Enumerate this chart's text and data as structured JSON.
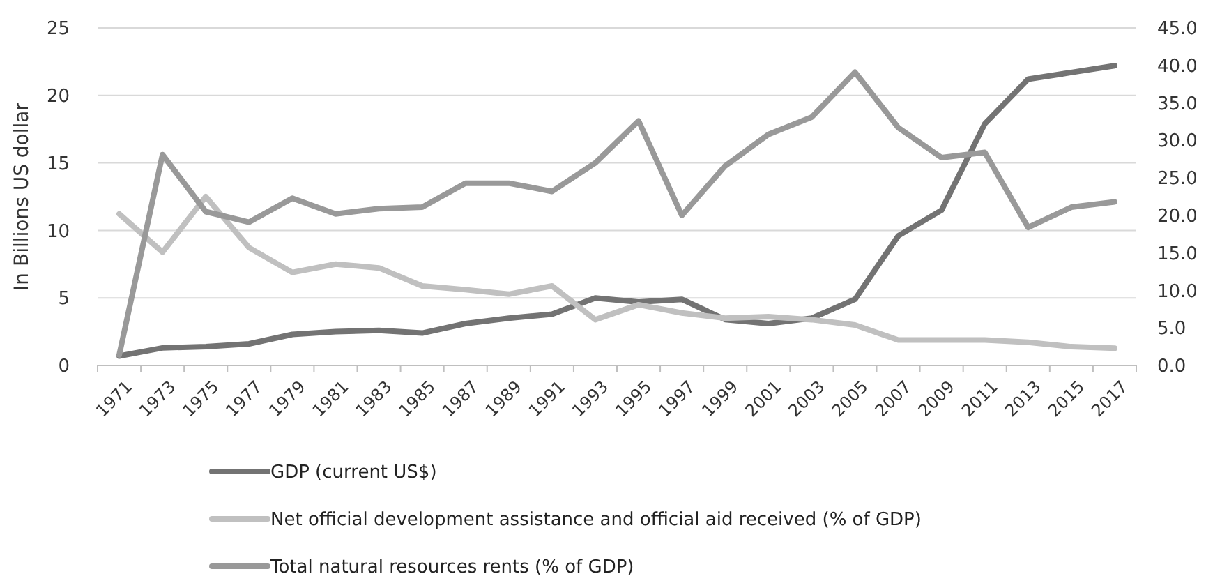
{
  "chart_data": {
    "type": "line",
    "ylabel": "In Billions  US dollar",
    "categories": [
      "1971",
      "1973",
      "1975",
      "1977",
      "1979",
      "1981",
      "1983",
      "1985",
      "1987",
      "1989",
      "1991",
      "1993",
      "1995",
      "1997",
      "1999",
      "2001",
      "2003",
      "2005",
      "2007",
      "2009",
      "2011",
      "2013",
      "2015",
      "2017"
    ],
    "series": [
      {
        "name": "GDP (current US$)",
        "color": "#737373",
        "values": [
          0.7,
          1.3,
          1.4,
          1.6,
          2.3,
          2.5,
          2.6,
          2.4,
          3.1,
          3.5,
          3.8,
          5.0,
          4.7,
          4.9,
          3.4,
          3.1,
          3.5,
          4.9,
          9.6,
          11.5,
          17.9,
          21.2,
          21.7,
          22.2
        ]
      },
      {
        "name": "Net official development assistance and official aid received (% of GDP)",
        "color": "#c0c0c0",
        "axis": "y2",
        "values": [
          20.2,
          15.1,
          22.5,
          15.7,
          12.4,
          13.5,
          13.0,
          10.6,
          10.1,
          9.5,
          10.6,
          6.1,
          8.1,
          7.0,
          6.3,
          6.5,
          6.1,
          5.4,
          3.4,
          3.4,
          3.4,
          3.1,
          2.5,
          2.3
        ]
      },
      {
        "name": "Total natural resources rents (% of GDP)",
        "color": "#999999",
        "axis": "y2",
        "values": [
          1.4,
          28.1,
          20.5,
          19.1,
          22.3,
          20.2,
          20.9,
          21.1,
          24.3,
          24.3,
          23.2,
          27.0,
          32.6,
          20.0,
          26.6,
          30.8,
          33.1,
          39.1,
          31.7,
          27.7,
          28.4,
          18.4,
          21.1,
          21.8
        ]
      }
    ],
    "ylim": [
      0,
      25
    ],
    "yticks": [
      0,
      5,
      10,
      15,
      20,
      25
    ],
    "y2lim": [
      0,
      45
    ],
    "y2ticks": [
      {
        "value": 0,
        "label": "0.0"
      },
      {
        "value": 5,
        "label": "5.0"
      },
      {
        "value": 10,
        "label": "10.0"
      },
      {
        "value": 15,
        "label": "15.0"
      },
      {
        "value": 20,
        "label": "20.0"
      },
      {
        "value": 25,
        "label": "25.0"
      },
      {
        "value": 30,
        "label": "30.0"
      },
      {
        "value": 35,
        "label": "35.0"
      },
      {
        "value": 40,
        "label": "40.0"
      },
      {
        "value": 45,
        "label": "45.0"
      }
    ],
    "grid": "y",
    "legend": "bottom",
    "marker": "none",
    "line_style": "solid"
  }
}
